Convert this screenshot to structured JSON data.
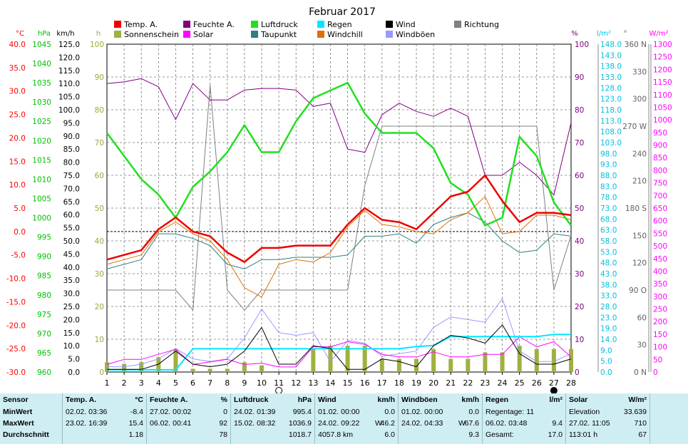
{
  "chart_data": {
    "type": "line",
    "title": "Februar 2017",
    "x": [
      1,
      2,
      3,
      4,
      5,
      6,
      7,
      8,
      9,
      10,
      11,
      12,
      13,
      14,
      15,
      16,
      17,
      18,
      19,
      20,
      21,
      22,
      23,
      24,
      25,
      26,
      27,
      28
    ],
    "x_ticks": [
      "1",
      "2",
      "3",
      "4",
      "5",
      "6",
      "7",
      "8",
      "9",
      "10",
      "11",
      "12",
      "13",
      "14",
      "15",
      "16",
      "17",
      "18",
      "19",
      "20",
      "21",
      "22",
      "23",
      "24",
      "25",
      "26",
      "27",
      "28"
    ],
    "grid": true,
    "legend_position": "top",
    "axes": {
      "temp": {
        "label": "°C",
        "range": [
          -30,
          40
        ],
        "ticks": [
          "40.0",
          "35.0",
          "30.0",
          "25.0",
          "20.0",
          "15.0",
          "10.0",
          "5.0",
          "0.0",
          "-5.0",
          "-10.0",
          "-15.0",
          "-20.0",
          "-25.0",
          "-30.0"
        ],
        "color": "#ff0000"
      },
      "pressure": {
        "label": "hPa",
        "range": [
          960,
          1045
        ],
        "ticks": [
          "1045",
          "1040",
          "1035",
          "1030",
          "1025",
          "1020",
          "1015",
          "1010",
          "1005",
          "1000",
          "995",
          "990",
          "985",
          "980",
          "975",
          "970",
          "965",
          "960"
        ],
        "color": "#00c000"
      },
      "wind": {
        "label": "km/h",
        "range": [
          0,
          125
        ],
        "ticks": [
          "125.0",
          "120.0",
          "115.0",
          "110.0",
          "105.0",
          "100.0",
          "95.0",
          "90.0",
          "85.0",
          "80.0",
          "75.0",
          "70.0",
          "65.0",
          "60.0",
          "55.0",
          "50.0",
          "45.0",
          "40.0",
          "35.0",
          "30.0",
          "25.0",
          "20.0",
          "15.0",
          "10.0",
          "5.0",
          "0.0"
        ],
        "color": "#000000"
      },
      "sun": {
        "label": "h",
        "range": [
          0,
          100
        ],
        "ticks": [
          "100",
          "90",
          "80",
          "70",
          "60",
          "50",
          "40",
          "30",
          "20",
          "10",
          "0"
        ],
        "color": "#9aa83a"
      },
      "humidity": {
        "label": "%",
        "range": [
          0,
          100
        ],
        "ticks": [
          "100",
          "90",
          "80",
          "70",
          "60",
          "50",
          "40",
          "30",
          "20",
          "10",
          "0"
        ],
        "color": "#800080"
      },
      "rain": {
        "label": "l/m²",
        "range": [
          0,
          148
        ],
        "ticks": [
          "148.0",
          "143.0",
          "138.0",
          "133.0",
          "128.0",
          "123.0",
          "118.0",
          "113.0",
          "108.0",
          "103.0",
          "98.0",
          "93.0",
          "88.0",
          "83.0",
          "78.0",
          "73.0",
          "68.0",
          "63.0",
          "58.0",
          "53.0",
          "48.0",
          "43.0",
          "38.0",
          "33.0",
          "28.0",
          "23.0",
          "19.0",
          "14.0",
          "9.0",
          "5.0",
          "0.0"
        ],
        "color": "#00c0e0"
      },
      "direction": {
        "label": "°",
        "range": [
          0,
          360
        ],
        "ticks": [
          "360 N",
          "330",
          "300",
          "270 W",
          "240",
          "210",
          "180 S",
          "150",
          "120",
          "90 O",
          "60",
          "30",
          "0 N"
        ],
        "color": "#606060"
      },
      "solar": {
        "label": "W/m²",
        "range": [
          0,
          1300
        ],
        "ticks": [
          "1300",
          "1250",
          "1200",
          "1150",
          "1100",
          "1050",
          "1000",
          "950",
          "900",
          "850",
          "800",
          "750",
          "700",
          "650",
          "600",
          "550",
          "500",
          "450",
          "400",
          "350",
          "300",
          "250",
          "200",
          "150",
          "100",
          "50",
          "0"
        ],
        "color": "#ff00ff"
      }
    },
    "series": [
      {
        "name": "Temp. A.",
        "axis": "temp",
        "color": "#ee0000",
        "values": [
          -6.0,
          -5.0,
          -4.0,
          0.5,
          3.0,
          0.0,
          -1.0,
          -4.5,
          -6.5,
          -3.5,
          -3.5,
          -3.0,
          -3.0,
          -3.0,
          1.5,
          5.0,
          2.5,
          2.0,
          0.5,
          4.0,
          7.5,
          8.5,
          12.0,
          6.5,
          2.0,
          4.0,
          4.0,
          3.5
        ]
      },
      {
        "name": "Feuchte A.",
        "axis": "humidity",
        "color": "#800080",
        "values": [
          88,
          88.5,
          89.5,
          87,
          77,
          88,
          83,
          83,
          86,
          86.5,
          86.5,
          86,
          81,
          82,
          68,
          67,
          78.5,
          82,
          79.5,
          78,
          80.5,
          78,
          60,
          60,
          64,
          60,
          54,
          76
        ]
      },
      {
        "name": "Luftdruck",
        "axis": "pressure",
        "color": "#20e020",
        "values": [
          1022,
          1016,
          1010,
          1006,
          1000,
          1008,
          1012,
          1017,
          1024,
          1017,
          1017,
          1025,
          1031,
          1033,
          1035,
          1027,
          1022,
          1022,
          1022,
          1018,
          1009,
          1006,
          998,
          1000,
          1021,
          1016,
          1004,
          998
        ]
      },
      {
        "name": "Taupunkt",
        "axis": "temp",
        "color": "#2f7f7f",
        "values": [
          -8.0,
          -7.0,
          -6.0,
          -0.5,
          -0.5,
          -1.5,
          -3.0,
          -7.0,
          -8.0,
          -6.0,
          -6.0,
          -5.5,
          -5.5,
          -5.5,
          -5.0,
          -1.0,
          -1.0,
          -0.5,
          -2.5,
          1.5,
          3.0,
          4.0,
          2.0,
          -2.0,
          -4.5,
          -4.0,
          -0.5,
          -1.0
        ]
      },
      {
        "name": "Windchill",
        "axis": "temp",
        "color": "#e07000",
        "values": [
          -7.0,
          -6.0,
          -5.0,
          0.0,
          2.0,
          -0.5,
          -2.0,
          -6.0,
          -12.0,
          -14.0,
          -7.0,
          -6.0,
          -6.5,
          -4.5,
          1.0,
          4.5,
          1.5,
          1.0,
          0.0,
          -0.5,
          2.5,
          4.0,
          7.5,
          -0.5,
          0.0,
          3.5,
          3.5,
          2.5
        ]
      },
      {
        "name": "Wind",
        "axis": "wind",
        "color": "#000000",
        "values": [
          1,
          1,
          1,
          3,
          8,
          3,
          2,
          3,
          8,
          17,
          3,
          3,
          10,
          9,
          1,
          1,
          5,
          4,
          2,
          10,
          14,
          13,
          11,
          18,
          7,
          3,
          3,
          5
        ]
      },
      {
        "name": "Windböen",
        "axis": "wind",
        "color": "#9999ff",
        "values": [
          2,
          2,
          3,
          5,
          9,
          5,
          4,
          5,
          13,
          24,
          15,
          14,
          15,
          4,
          12,
          11,
          6,
          7,
          8,
          17,
          21,
          20,
          19,
          28,
          8,
          4,
          4,
          7
        ]
      },
      {
        "name": "Richtung",
        "axis": "direction",
        "color": "#808080",
        "values": [
          90,
          90,
          90,
          90,
          90,
          68,
          315,
          90,
          68,
          90,
          90,
          90,
          90,
          90,
          90,
          205,
          270,
          270,
          270,
          270,
          270,
          270,
          270,
          270,
          270,
          270,
          90,
          150
        ]
      },
      {
        "name": "Regen",
        "axis": "rain",
        "color": "#00e8ff",
        "values": [
          1,
          1,
          1,
          1,
          1,
          10.5,
          10.5,
          10.5,
          10.5,
          10.5,
          10.5,
          10.5,
          10.5,
          10.5,
          10.5,
          10.5,
          10.5,
          10.5,
          11.5,
          12,
          16,
          16,
          16,
          16,
          16,
          16,
          17,
          17
        ]
      },
      {
        "name": "Solar",
        "axis": "solar",
        "color": "#ff00ff",
        "values": [
          30,
          50,
          50,
          70,
          90,
          30,
          40,
          50,
          30,
          35,
          20,
          20,
          100,
          100,
          120,
          110,
          70,
          60,
          60,
          80,
          60,
          60,
          70,
          70,
          140,
          100,
          120,
          60
        ]
      },
      {
        "name": "Sonnenschein",
        "axis": "sun",
        "type": "bar",
        "color": "#a0b040",
        "values": [
          3,
          2.5,
          3,
          4.5,
          7,
          1,
          1,
          1,
          3,
          2,
          0,
          0,
          7,
          8,
          8,
          8,
          4,
          4,
          4,
          7,
          4,
          4,
          6,
          6,
          8,
          7,
          7,
          7
        ]
      }
    ],
    "extra_legend": [
      "Richtung"
    ],
    "moon_markers": [
      {
        "day": 11,
        "phase": "new"
      },
      {
        "day": 27,
        "phase": "full"
      }
    ]
  },
  "stats_table": {
    "columns": [
      {
        "title": "Temp. A.",
        "unit": "°C",
        "min_time": "02.02.  03:36",
        "min": "-8.4",
        "max_time": "23.02.  16:39",
        "max": "15.4",
        "avg": "1.18"
      },
      {
        "title": "Feuchte A.",
        "unit": "%",
        "min_time": "27.02.  00:02",
        "min": "0",
        "max_time": "06.02.  00:41",
        "max": "92",
        "avg": "78"
      },
      {
        "title": "Luftdruck",
        "unit": "hPa",
        "min_time": "24.02.  01:39",
        "min": "995.4",
        "max_time": "15.02.  08:32",
        "max": "1036.9",
        "avg": "1018.7"
      },
      {
        "title": "Wind",
        "unit": "km/h",
        "min_time": "01.02.  00:00",
        "min": "0.0",
        "max_time": "24.02.  09:22",
        "max_dir": "W",
        "max": "46.2",
        "avg_left": "4057.8 km",
        "avg": "6.0"
      },
      {
        "title": "Windböen",
        "unit": "km/h",
        "min_time": "01.02.  00:00",
        "min": "0.0",
        "max_time": "24.02.  04:33",
        "max_dir": "W",
        "max": "67.6",
        "avg": "9.3"
      },
      {
        "title": "Regen",
        "unit": "l/m²",
        "row1": "Regentage: 11",
        "row2_left": "06.02.  03:48",
        "row2_right": "9.4",
        "row3_left": "Gesamt:",
        "row3_right": "17.0"
      },
      {
        "title": "Solar",
        "unit": "W/m²",
        "row1_left": "Elevation",
        "row1_right": "33.639",
        "row2_left": "27.02.  11:05",
        "row2_right": "710",
        "row3_left": "113:01 h",
        "row3_right": "67"
      }
    ],
    "row_labels": {
      "header": "Sensor",
      "min": "MinWert",
      "max": "MaxWert",
      "avg": "Durchschnitt"
    }
  }
}
